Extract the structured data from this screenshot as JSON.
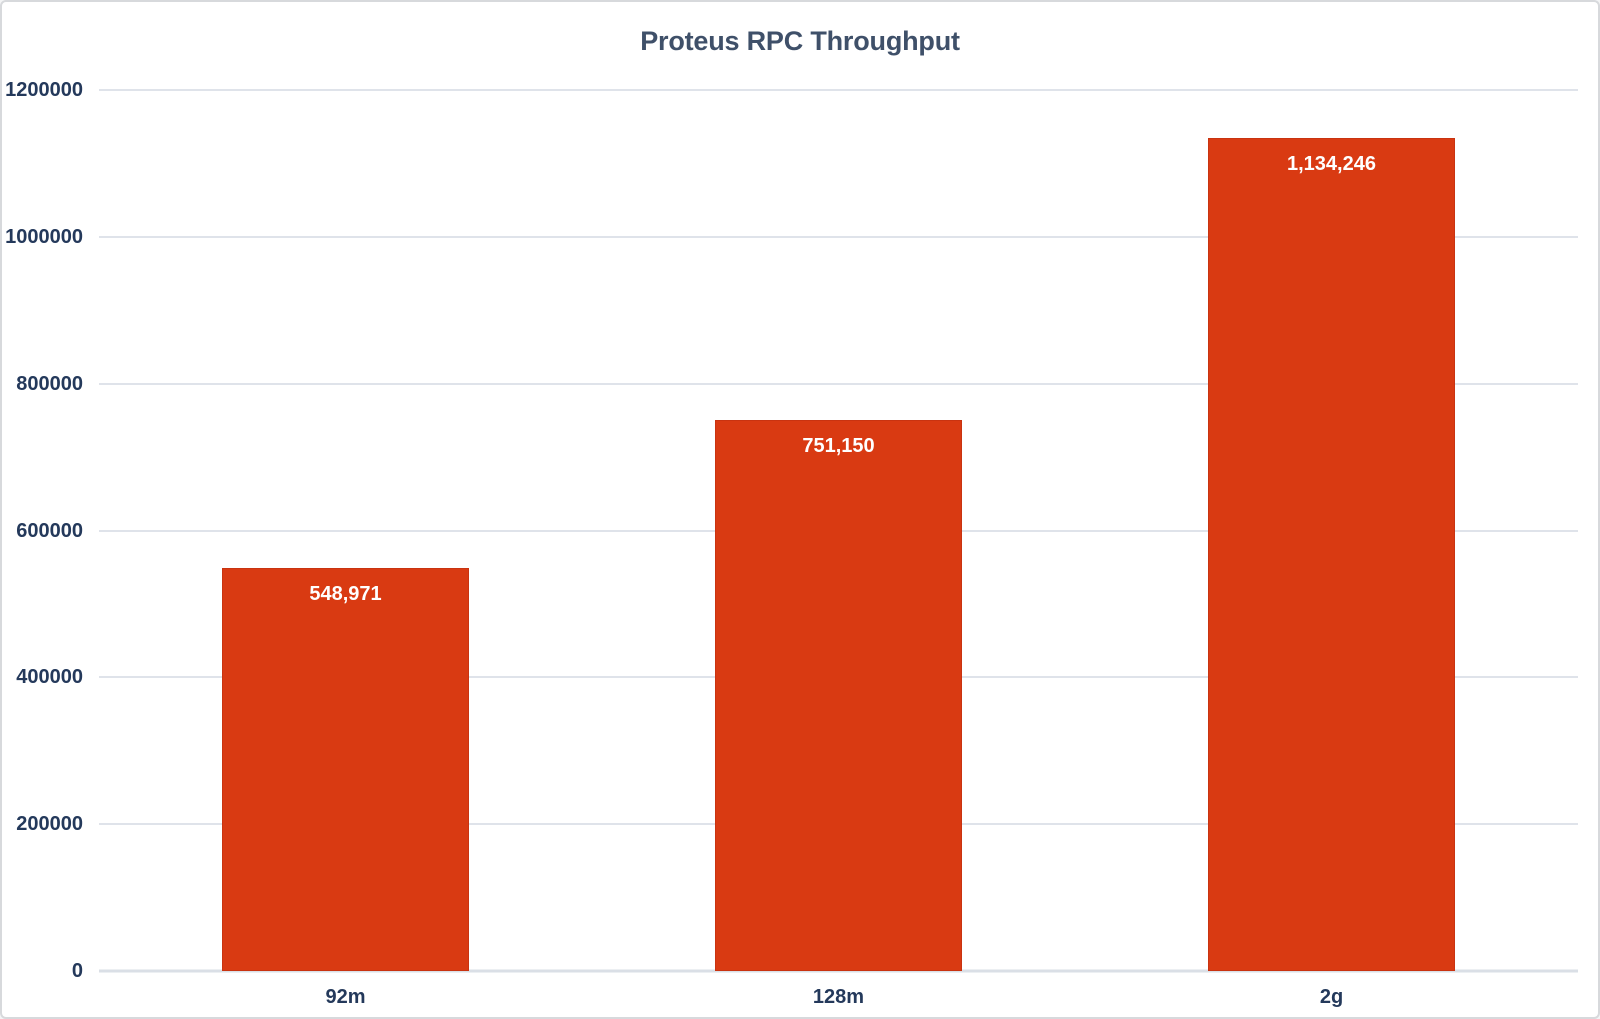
{
  "chart_data": {
    "type": "bar",
    "title": "Proteus RPC Throughput",
    "categories": [
      "92m",
      "128m",
      "2g"
    ],
    "values": [
      548971,
      751150,
      1134246
    ],
    "value_labels": [
      "548,971",
      "751,150",
      "1,134,246"
    ],
    "xlabel": "",
    "ylabel": "",
    "ylim": [
      0,
      1200000
    ],
    "ytick_step": 200000,
    "ytick_labels": [
      "0",
      "200000",
      "400000",
      "600000",
      "800000",
      "1000000",
      "1200000"
    ],
    "grid": true,
    "legend_position": "none",
    "colors": {
      "bar_fill": "#d93a12",
      "bar_border": "#c93310",
      "gridline": "#dfe3ea",
      "axis_line": "#dadfe6",
      "title_text": "#3f5069",
      "tick_text": "#24395b",
      "value_label_text": "#ffffff",
      "background": "#ffffff",
      "frame_border": "#d7d9dc"
    }
  }
}
